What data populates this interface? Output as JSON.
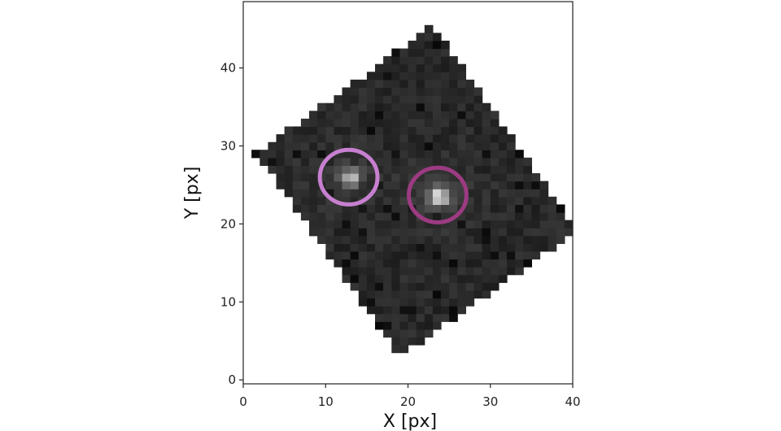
{
  "chart_data": {
    "type": "heatmap",
    "xlabel": "X [px]",
    "ylabel": "Y [px]",
    "xlim": [
      0,
      40
    ],
    "ylim": [
      -0.5,
      48.5
    ],
    "xticks": [
      "0",
      "10",
      "20",
      "30",
      "40"
    ],
    "yticks": [
      "0",
      "10",
      "20",
      "30",
      "40"
    ],
    "colormap": "gray",
    "image_footprint_corners": [
      [
        23,
        45.5
      ],
      [
        40.5,
        19
      ],
      [
        19,
        3
      ],
      [
        1.5,
        29
      ]
    ],
    "sources": [
      {
        "x": 13.0,
        "y": 26.0,
        "peak": 0.7
      },
      {
        "x": 23.7,
        "y": 23.5,
        "peak": 1.0
      }
    ],
    "apertures": [
      {
        "x": 12.8,
        "y": 26.0,
        "radius": 3.5,
        "color": "#c77fd0"
      },
      {
        "x": 23.6,
        "y": 23.7,
        "radius": 3.5,
        "color": "#9c3b82"
      }
    ]
  }
}
